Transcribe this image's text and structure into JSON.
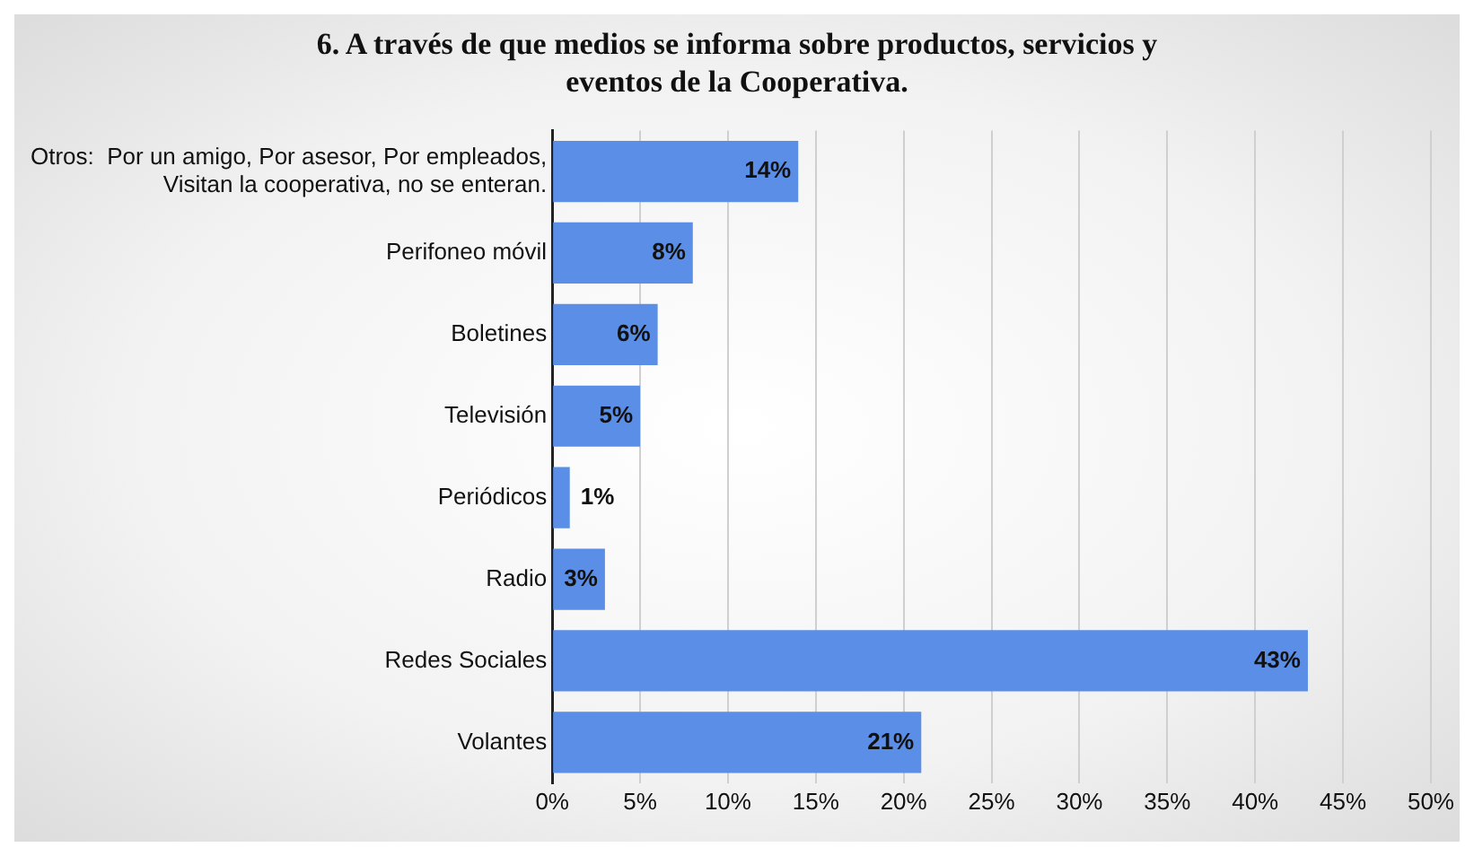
{
  "chart_data": {
    "type": "bar",
    "orientation": "horizontal",
    "title": "6. A través de que medios se informa sobre productos, servicios y eventos de la Cooperativa.",
    "categories": [
      "Otros:  Por un amigo, Por asesor, Por empleados,\nVisitan la cooperativa, no se enteran.",
      "Perifoneo móvil",
      "Boletines",
      "Televisión",
      "Periódicos",
      "Radio",
      "Redes Sociales",
      "Volantes"
    ],
    "values": [
      14,
      8,
      6,
      5,
      1,
      3,
      43,
      21
    ],
    "value_labels": [
      "14%",
      "8%",
      "6%",
      "5%",
      "1%",
      "3%",
      "43%",
      "21%"
    ],
    "color": "#5b8ee6",
    "xlim": [
      0,
      50
    ],
    "xticks": [
      {
        "value": 0,
        "label": "0%"
      },
      {
        "value": 5,
        "label": "5%"
      },
      {
        "value": 10,
        "label": "10%"
      },
      {
        "value": 15,
        "label": "15%"
      },
      {
        "value": 20,
        "label": "20%"
      },
      {
        "value": 25,
        "label": "25%"
      },
      {
        "value": 30,
        "label": "30%"
      },
      {
        "value": 35,
        "label": "35%"
      },
      {
        "value": 40,
        "label": "40%"
      },
      {
        "value": 45,
        "label": "45%"
      },
      {
        "value": 50,
        "label": "50%"
      }
    ],
    "grid": "x",
    "legend": false
  }
}
